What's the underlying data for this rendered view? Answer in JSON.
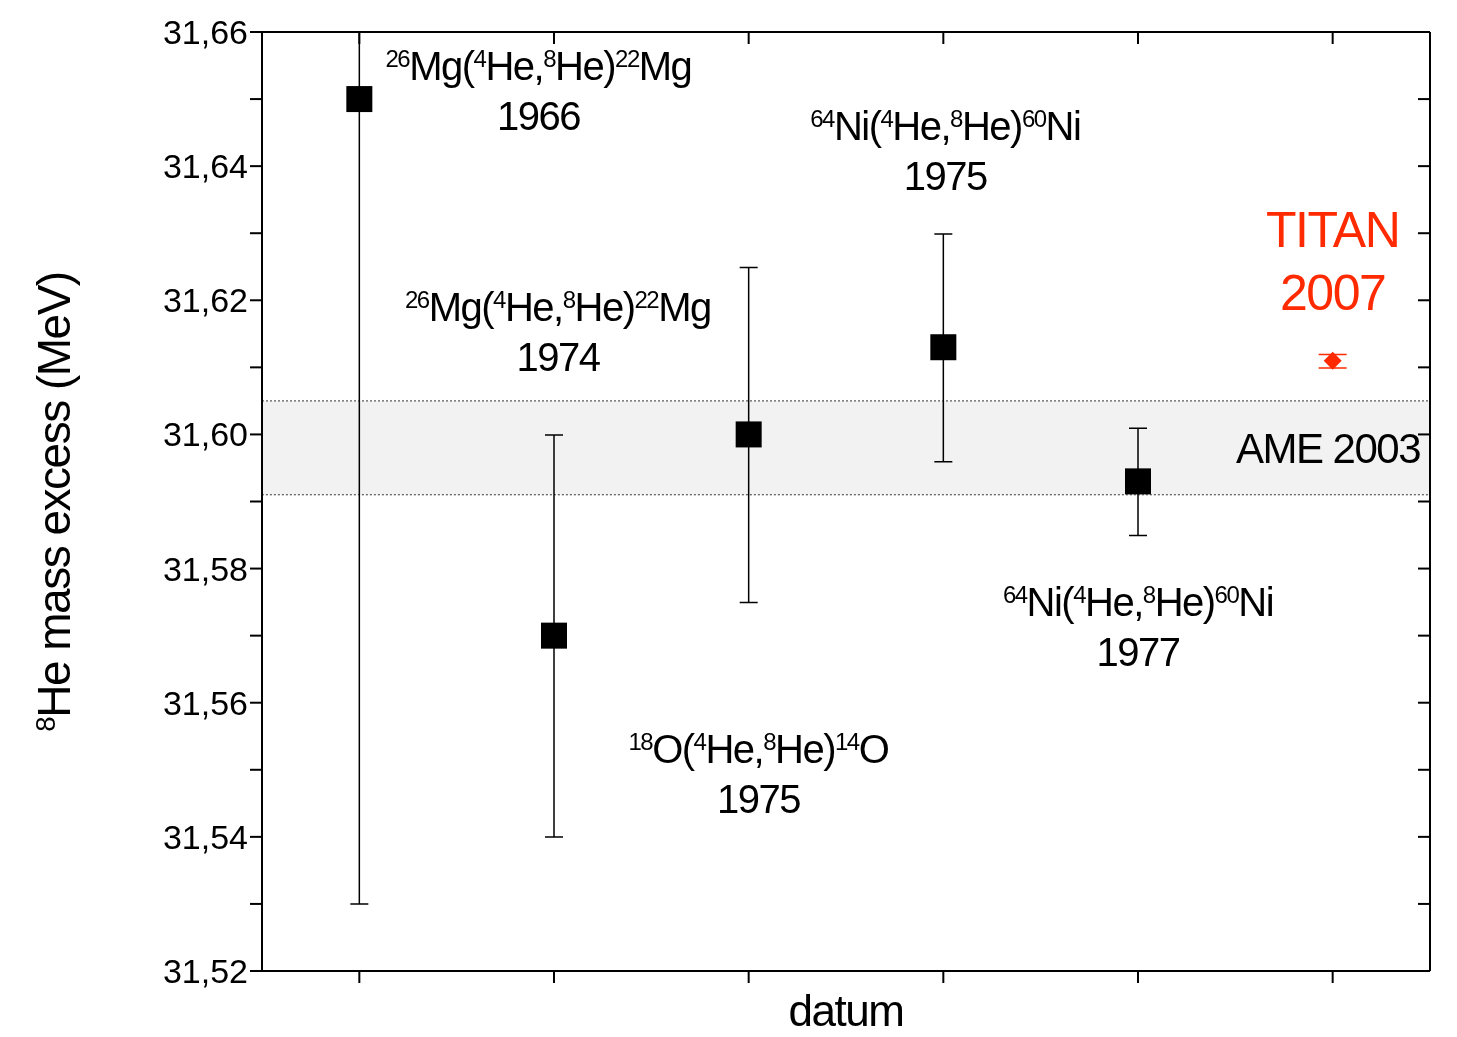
{
  "chart_data": {
    "type": "scatter",
    "xlabel": "datum",
    "ylabel": "$^{8}$He mass excess (MeV)",
    "categories": [
      null,
      null,
      null,
      null,
      null,
      null
    ],
    "series": [
      {
        "color": "#000000",
        "marker": "square",
        "values": [
          31.65,
          31.57,
          31.6,
          31.613,
          31.593,
          null
        ],
        "errors": [
          [
            31.53,
            31.66
          ],
          0.03,
          0.025,
          0.017,
          0.008,
          null
        ]
      },
      {
        "color": "#ff2a00",
        "marker": "diamond",
        "values": [
          null,
          null,
          null,
          null,
          null,
          31.611
        ],
        "errors": [
          null,
          null,
          null,
          null,
          null,
          0.001
        ]
      }
    ],
    "ylim": [
      31.52,
      31.66
    ],
    "yticks": [
      {
        "value": 31.52,
        "label": "31,52"
      },
      {
        "value": 31.53,
        "label": null
      },
      {
        "value": 31.54,
        "label": "31,54"
      },
      {
        "value": 31.55,
        "label": null
      },
      {
        "value": 31.56,
        "label": "31,56"
      },
      {
        "value": 31.57,
        "label": null
      },
      {
        "value": 31.58,
        "label": "31,58"
      },
      {
        "value": 31.59,
        "label": null
      },
      {
        "value": 31.6,
        "label": "31,60"
      },
      {
        "value": 31.61,
        "label": null
      },
      {
        "value": 31.62,
        "label": "31,62"
      },
      {
        "value": 31.63,
        "label": null
      },
      {
        "value": 31.64,
        "label": "31,64"
      },
      {
        "value": 31.65,
        "label": null
      },
      {
        "value": 31.66,
        "label": "31,66"
      }
    ],
    "bands": [
      {
        "axis": "y",
        "from": 31.591,
        "to": 31.605,
        "label": "AME 2003",
        "color": "#f2f2f2"
      }
    ],
    "annotations": [
      "$^{26}$Mg($^{4}$He,$^{8}$He)$^{22}$Mg\n1966",
      "$^{26}$Mg($^{4}$He,$^{8}$He)$^{22}$Mg\n1974",
      "$^{18}$O($^{4}$He,$^{8}$He)$^{14}$O\n1975",
      "$^{64}$Ni($^{4}$He,$^{8}$He)$^{60}$Ni\n1975",
      "$^{64}$Ni($^{4}$He,$^{8}$He)$^{60}$Ni\n1977",
      "TITAN\n2007"
    ],
    "grid": false
  }
}
